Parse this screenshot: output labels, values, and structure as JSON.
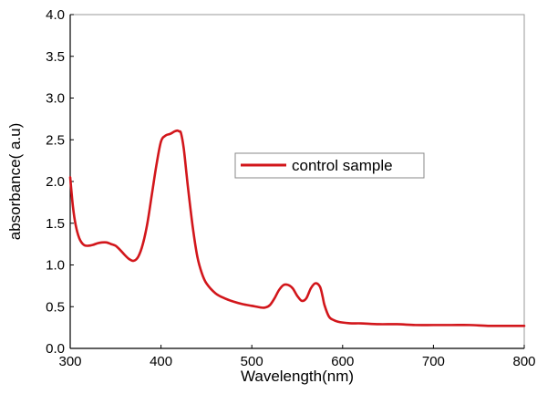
{
  "chart_data": {
    "type": "line",
    "xlabel": "Wavelength(nm)",
    "ylabel": "absorbance( a.u)",
    "xlim": [
      300,
      800
    ],
    "ylim": [
      0.0,
      4.0
    ],
    "x_ticks": [
      300,
      400,
      500,
      600,
      700,
      800
    ],
    "y_ticks": [
      "0.0",
      "0.5",
      "1.0",
      "1.5",
      "2.0",
      "2.5",
      "3.0",
      "3.5",
      "4.0"
    ],
    "grid": false,
    "legend_position": "center-right",
    "series": [
      {
        "name": "control sample",
        "color": "#d2161b",
        "x": [
          300,
          303,
          306,
          310,
          315,
          320,
          325,
          330,
          335,
          340,
          345,
          350,
          355,
          360,
          365,
          370,
          375,
          380,
          385,
          390,
          395,
          400,
          405,
          410,
          415,
          418,
          420,
          422,
          425,
          428,
          430,
          435,
          440,
          445,
          450,
          460,
          470,
          480,
          490,
          500,
          510,
          515,
          520,
          525,
          530,
          535,
          540,
          545,
          550,
          555,
          560,
          565,
          570,
          575,
          578,
          580,
          585,
          590,
          595,
          600,
          610,
          620,
          640,
          660,
          680,
          700,
          720,
          740,
          760,
          780,
          800
        ],
        "values": [
          2.05,
          1.7,
          1.48,
          1.32,
          1.24,
          1.23,
          1.24,
          1.26,
          1.27,
          1.27,
          1.25,
          1.23,
          1.18,
          1.12,
          1.07,
          1.05,
          1.1,
          1.25,
          1.5,
          1.85,
          2.2,
          2.48,
          2.55,
          2.57,
          2.6,
          2.61,
          2.6,
          2.58,
          2.4,
          2.1,
          1.9,
          1.45,
          1.1,
          0.9,
          0.78,
          0.66,
          0.6,
          0.56,
          0.53,
          0.51,
          0.49,
          0.49,
          0.52,
          0.6,
          0.7,
          0.76,
          0.76,
          0.72,
          0.63,
          0.57,
          0.6,
          0.72,
          0.78,
          0.74,
          0.62,
          0.52,
          0.38,
          0.34,
          0.32,
          0.31,
          0.3,
          0.3,
          0.29,
          0.29,
          0.28,
          0.28,
          0.28,
          0.28,
          0.27,
          0.27,
          0.27
        ]
      }
    ]
  }
}
